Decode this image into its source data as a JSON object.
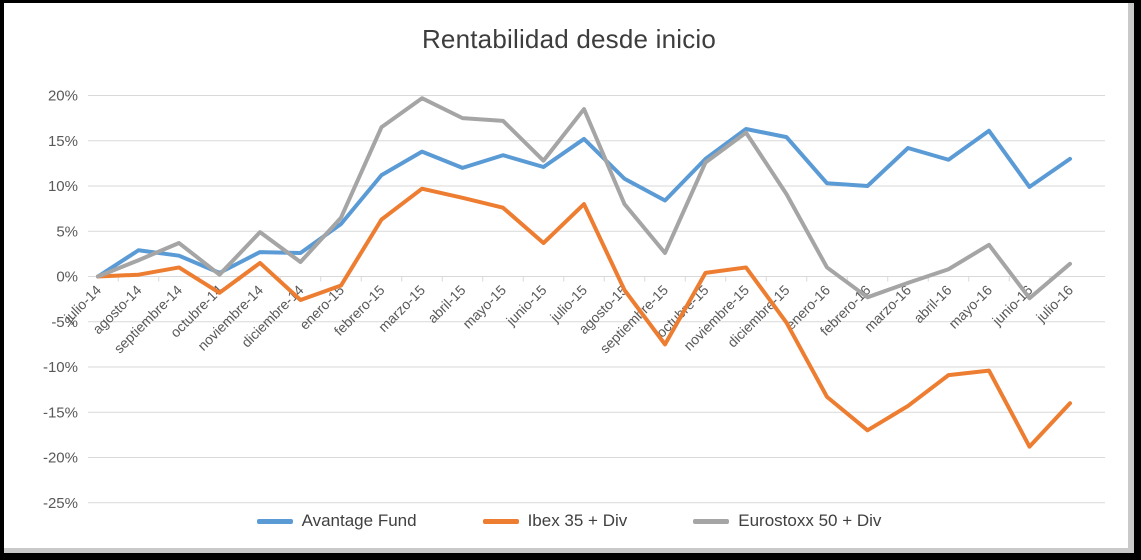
{
  "chart_data": {
    "type": "line",
    "title": "Rentabilidad desde inicio",
    "categories": [
      "julio-14",
      "agosto-14",
      "septiembre-14",
      "octubre-14",
      "noviembre-14",
      "diciembre-14",
      "enero-15",
      "febrero-15",
      "marzo-15",
      "abril-15",
      "mayo-15",
      "junio-15",
      "julio-15",
      "agosto-15",
      "septiembre-15",
      "octubre-15",
      "noviembre-15",
      "diciembre-15",
      "enero-16",
      "febrero-16",
      "marzo-16",
      "abril-16",
      "mayo-16",
      "junio-16",
      "julio-16"
    ],
    "series": [
      {
        "name": "Avantage Fund",
        "color": "#5B9BD5",
        "values": [
          0,
          2.9,
          2.3,
          0.4,
          2.7,
          2.6,
          5.8,
          11.2,
          13.8,
          12.0,
          13.4,
          12.1,
          15.2,
          10.8,
          8.4,
          13.0,
          16.3,
          15.4,
          10.3,
          10.0,
          14.2,
          12.9,
          16.1,
          9.9,
          13.0
        ]
      },
      {
        "name": "Ibex 35 + Div",
        "color": "#ED7D31",
        "values": [
          0,
          0.2,
          1.0,
          -1.8,
          1.5,
          -2.6,
          -1.0,
          6.3,
          9.7,
          8.7,
          7.6,
          3.7,
          8.0,
          -1.5,
          -7.5,
          0.4,
          1.0,
          -5.1,
          -13.3,
          -17.0,
          -14.3,
          -10.9,
          -10.4,
          -18.8,
          -14.0
        ]
      },
      {
        "name": "Eurostoxx 50 + Div",
        "color": "#A5A5A5",
        "values": [
          0,
          1.8,
          3.7,
          0.2,
          4.9,
          1.6,
          6.5,
          16.5,
          19.7,
          17.5,
          17.2,
          12.8,
          18.5,
          8.0,
          2.6,
          12.6,
          15.9,
          9.1,
          1.0,
          -2.3,
          -0.7,
          0.8,
          3.5,
          -2.4,
          1.4
        ]
      }
    ],
    "y_axis": {
      "max": 20,
      "min": -25,
      "step": 5,
      "tick_labels": [
        "20%",
        "15%",
        "10%",
        "5%",
        "0%",
        "-5%",
        "-10%",
        "-15%",
        "-20%",
        "-25%"
      ],
      "format": "percent"
    },
    "x_axis": {
      "label_rotation_deg": -45
    },
    "grid": true,
    "legend_position": "bottom",
    "grid_color": "#d9d9d9"
  }
}
